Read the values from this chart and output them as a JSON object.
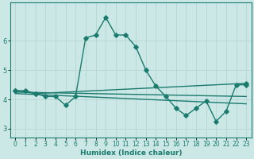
{
  "xlabel": "Humidex (Indice chaleur)",
  "bg_color": "#cce8e6",
  "grid_color": "#b8d8d5",
  "line_color": "#1a7a6e",
  "xlim": [
    -0.5,
    23.5
  ],
  "ylim": [
    2.7,
    7.3
  ],
  "x_ticks": [
    0,
    1,
    2,
    3,
    4,
    5,
    6,
    7,
    8,
    9,
    10,
    11,
    12,
    13,
    14,
    15,
    16,
    17,
    18,
    19,
    20,
    21,
    22,
    23
  ],
  "y_ticks": [
    3,
    4,
    5,
    6
  ],
  "line1_x": [
    0,
    1,
    2,
    3,
    4,
    5,
    6,
    7,
    8,
    9,
    10,
    11,
    12,
    13,
    14,
    15,
    16,
    17,
    18,
    19,
    20,
    21,
    22,
    23
  ],
  "line1_y": [
    4.3,
    4.3,
    4.2,
    4.1,
    4.1,
    3.8,
    4.1,
    6.1,
    6.2,
    6.8,
    6.2,
    6.2,
    5.8,
    5.0,
    4.45,
    4.1,
    3.7,
    3.45,
    3.7,
    3.95,
    3.25,
    3.6,
    4.5,
    4.5
  ],
  "line2_x": [
    0,
    2,
    23
  ],
  "line2_y": [
    4.3,
    4.2,
    4.55
  ],
  "line3_x": [
    0,
    23
  ],
  "line3_y": [
    4.25,
    4.1
  ],
  "line4_x": [
    0,
    23
  ],
  "line4_y": [
    4.2,
    3.85
  ],
  "marker_size": 2.8,
  "line_width": 1.0
}
